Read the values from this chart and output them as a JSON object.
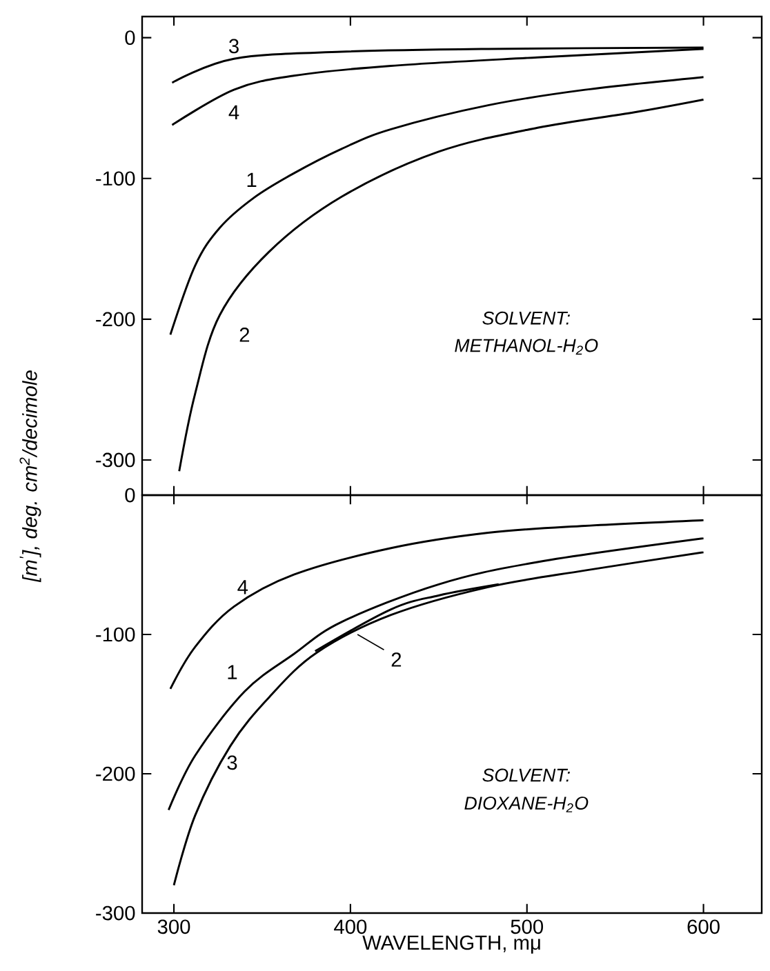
{
  "chart_data": [
    {
      "type": "line",
      "ylabel": "[m$^{′}$], deg. cm$^{2}$/decimole",
      "xlim": [
        282,
        633
      ],
      "ylim": [
        -325,
        15
      ],
      "xticks": [
        {
          "value": 300,
          "label": null
        },
        {
          "value": 400,
          "label": null
        },
        {
          "value": 500,
          "label": null
        },
        {
          "value": 600,
          "label": null
        }
      ],
      "yticks": [
        0,
        -100,
        -200,
        -300
      ],
      "tick_labels": "y",
      "series": [
        {
          "name": "1",
          "color": "#000000",
          "x": [
            298,
            312,
            326,
            345,
            367,
            395,
            423,
            478,
            533,
            600
          ],
          "values": [
            -211,
            -162,
            -135,
            -114,
            -97,
            -79,
            -65,
            -48,
            -37,
            -28
          ]
        },
        {
          "name": "2",
          "color": "#000000",
          "x": [
            303,
            312,
            326,
            354,
            395,
            450,
            506,
            561,
            600
          ],
          "values": [
            -308,
            -253,
            -197,
            -152,
            -113,
            -81,
            -64,
            -53,
            -44
          ]
        },
        {
          "name": "3",
          "color": "#000000",
          "x": [
            299,
            334,
            395,
            478,
            600
          ],
          "values": [
            -32,
            -15,
            -10,
            -8,
            -7
          ]
        },
        {
          "name": "4",
          "color": "#000000",
          "x": [
            299,
            334,
            368,
            423,
            506,
            600
          ],
          "values": [
            -62,
            -37,
            -27,
            -20,
            -14,
            -8
          ]
        }
      ],
      "annotations": [
        "SOLVENT:",
        "METHANOL-H$_{2}$O"
      ]
    },
    {
      "type": "line",
      "xlabel": "WAVELENGTH, mμ",
      "xlim": [
        282,
        633
      ],
      "ylim": [
        -300,
        0
      ],
      "xticks": [
        300,
        400,
        500,
        600
      ],
      "yticks": [
        0,
        -100,
        -200,
        -300
      ],
      "series": [
        {
          "name": "1",
          "color": "#000000",
          "x": [
            297,
            312,
            340,
            368,
            395,
            450,
            506,
            600
          ],
          "values": [
            -226,
            -187,
            -141,
            -114,
            -91,
            -64,
            -48,
            -31
          ]
        },
        {
          "name": "2",
          "color": "#000000",
          "x": [
            380,
            423,
            450,
            484
          ],
          "values": [
            -112,
            -82,
            -72,
            -64
          ]
        },
        {
          "name": "3",
          "color": "#000000",
          "x": [
            300,
            312,
            332,
            354,
            381,
            423,
            478,
            533,
            600
          ],
          "values": [
            -280,
            -230,
            -180,
            -145,
            -113,
            -86,
            -66,
            -54,
            -41
          ]
        },
        {
          "name": "4",
          "color": "#000000",
          "x": [
            298,
            312,
            334,
            368,
            423,
            478,
            533,
            600
          ],
          "values": [
            -139,
            -109,
            -80,
            -57,
            -38,
            -27,
            -22,
            -18
          ]
        }
      ],
      "annotations": [
        "SOLVENT:",
        "DIOXANE-H$_{2}$O"
      ]
    }
  ]
}
